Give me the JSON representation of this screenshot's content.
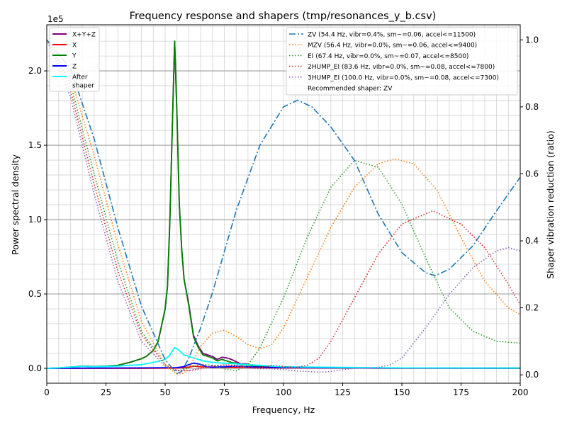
{
  "chart_data": {
    "type": "line",
    "title": "Frequency response and shapers (tmp/resonances_y_b.csv)",
    "xlabel": "Frequency, Hz",
    "ylabel": "Power spectral density",
    "y2label": "Shaper vibration reduction (ratio)",
    "y_offset_text": "1e5",
    "xlim": [
      0,
      200
    ],
    "ylim": [
      -10000,
      231000
    ],
    "y2lim": [
      -0.025,
      1.045
    ],
    "x_ticks": [
      0,
      25,
      50,
      75,
      100,
      125,
      150,
      175,
      200
    ],
    "y_ticks": [
      0,
      50000,
      100000,
      150000,
      200000
    ],
    "y_tick_labels": [
      "0.0",
      "0.5",
      "1.0",
      "1.5",
      "2.0"
    ],
    "y2_ticks": [
      0,
      0.2,
      0.4,
      0.6,
      0.8,
      1.0
    ],
    "y2_tick_labels": [
      "0.0",
      "0.2",
      "0.4",
      "0.6",
      "0.8",
      "1.0"
    ],
    "grid": true,
    "psd_series": [
      {
        "name": "X+Y+Z",
        "color": "#800080",
        "style": "solid",
        "x": [
          0,
          5,
          10,
          15,
          20,
          25,
          30,
          35,
          38,
          40,
          42,
          45,
          47,
          48,
          50,
          51,
          52,
          53,
          54,
          55,
          56,
          57,
          58,
          60,
          62,
          64,
          66,
          68,
          70,
          72,
          74,
          76,
          78,
          80,
          82,
          84,
          86,
          88,
          90,
          100,
          120,
          150,
          200
        ],
        "y": [
          0,
          300,
          800,
          1500,
          1200,
          1500,
          2000,
          4000,
          5500,
          6500,
          8000,
          12000,
          18000,
          25000,
          40000,
          55000,
          100000,
          160000,
          220000,
          170000,
          110000,
          80000,
          60000,
          43000,
          22000,
          15000,
          10000,
          9000,
          8000,
          6000,
          7500,
          7000,
          6000,
          4500,
          3000,
          3000,
          2500,
          2000,
          1500,
          1000,
          500,
          300,
          200
        ]
      },
      {
        "name": "X",
        "color": "#ff0000",
        "style": "solid",
        "x": [
          0,
          20,
          40,
          55,
          60,
          62,
          65,
          70,
          75,
          80,
          90,
          100,
          150,
          200
        ],
        "y": [
          0,
          0,
          0,
          200,
          800,
          1500,
          1000,
          700,
          800,
          600,
          400,
          300,
          100,
          50
        ]
      },
      {
        "name": "Y",
        "color": "#008000",
        "style": "solid",
        "x": [
          0,
          5,
          10,
          15,
          20,
          25,
          30,
          35,
          38,
          40,
          42,
          45,
          47,
          48,
          50,
          51,
          52,
          53,
          54,
          55,
          56,
          57,
          58,
          60,
          62,
          64,
          66,
          68,
          70,
          72,
          74,
          76,
          78,
          80,
          82,
          84,
          86,
          88,
          90,
          100,
          120,
          150,
          200
        ],
        "y": [
          0,
          300,
          800,
          1500,
          1200,
          1500,
          2000,
          4000,
          5500,
          6500,
          8000,
          12000,
          18000,
          25000,
          40000,
          55000,
          100000,
          160000,
          220000,
          170000,
          110000,
          80000,
          60000,
          42000,
          21000,
          14000,
          9000,
          8000,
          7000,
          5000,
          6000,
          5000,
          4000,
          3500,
          2500,
          2500,
          2000,
          1500,
          1200,
          800,
          400,
          200,
          150
        ]
      },
      {
        "name": "Z",
        "color": "#0000ff",
        "style": "solid",
        "x": [
          0,
          20,
          40,
          55,
          58,
          60,
          62,
          64,
          66,
          68,
          70,
          75,
          80,
          85,
          90,
          100,
          150,
          200
        ],
        "y": [
          0,
          200,
          300,
          500,
          1200,
          2500,
          3500,
          3000,
          2000,
          1000,
          800,
          1000,
          1500,
          1000,
          800,
          500,
          200,
          100
        ]
      },
      {
        "name": "After\nshaper",
        "color": "#00ffff",
        "style": "solid",
        "x": [
          0,
          5,
          10,
          15,
          20,
          25,
          30,
          35,
          40,
          45,
          48,
          50,
          52,
          54,
          56,
          58,
          60,
          62,
          64,
          66,
          70,
          75,
          80,
          85,
          90,
          100,
          150,
          200
        ],
        "y": [
          0,
          300,
          800,
          1400,
          1000,
          1300,
          1500,
          2000,
          2500,
          4000,
          5000,
          6000,
          9000,
          14000,
          12000,
          9000,
          8000,
          7000,
          6000,
          5000,
          4000,
          3500,
          3000,
          2500,
          2000,
          1000,
          300,
          200
        ]
      }
    ],
    "shaper_series": [
      {
        "name": "ZV (54.4 Hz, vibr=0.4%, sm~=0.06, accel<=11500)",
        "color": "#1f77b4",
        "style": "dashdot",
        "x": [
          0,
          10,
          20,
          30,
          40,
          50,
          55,
          57,
          60,
          65,
          70,
          80,
          90,
          100,
          106,
          112,
          120,
          130,
          140,
          150,
          160,
          164,
          170,
          180,
          190,
          200
        ],
        "y": [
          1.0,
          0.915,
          0.705,
          0.44,
          0.205,
          0.045,
          0.004,
          0.01,
          0.05,
          0.14,
          0.245,
          0.49,
          0.685,
          0.8,
          0.82,
          0.8,
          0.74,
          0.64,
          0.48,
          0.365,
          0.305,
          0.296,
          0.315,
          0.385,
          0.49,
          0.59
        ]
      },
      {
        "name": "MZV (56.4 Hz, vibr=0.0%, sm~=0.06, accel<=9400)",
        "color": "#ff7f0e",
        "style": "dotted",
        "x": [
          0,
          10,
          20,
          30,
          40,
          50,
          55,
          58,
          60,
          65,
          70,
          75,
          80,
          85,
          90,
          95,
          100,
          110,
          120,
          130,
          140,
          147,
          155,
          165,
          175,
          185,
          195,
          200
        ],
        "y": [
          1.0,
          0.89,
          0.655,
          0.39,
          0.16,
          0.03,
          0.002,
          0.005,
          0.02,
          0.085,
          0.125,
          0.133,
          0.115,
          0.09,
          0.078,
          0.09,
          0.14,
          0.29,
          0.44,
          0.56,
          0.63,
          0.645,
          0.63,
          0.55,
          0.41,
          0.28,
          0.2,
          0.18
        ]
      },
      {
        "name": "EI (67.4 Hz, vibr=0.0%, sm~=0.07, accel<=8500)",
        "color": "#2ca02c",
        "style": "dotted",
        "x": [
          0,
          10,
          20,
          30,
          40,
          50,
          55,
          58,
          62,
          66,
          70,
          75,
          80,
          85,
          90,
          100,
          110,
          120,
          130,
          140,
          150,
          160,
          170,
          180,
          190,
          200
        ],
        "y": [
          1.0,
          0.87,
          0.6,
          0.34,
          0.13,
          0.03,
          0.012,
          0.016,
          0.026,
          0.031,
          0.028,
          0.018,
          0.012,
          0.03,
          0.08,
          0.23,
          0.41,
          0.56,
          0.64,
          0.62,
          0.51,
          0.35,
          0.2,
          0.13,
          0.1,
          0.095
        ]
      },
      {
        "name": "2HUMP_EI (83.6 Hz, vibr=0.0%, sm~=0.08, accel<=7800)",
        "color": "#d62728",
        "style": "dotted",
        "x": [
          0,
          10,
          20,
          30,
          40,
          50,
          55,
          60,
          65,
          70,
          75,
          80,
          85,
          90,
          95,
          100,
          105,
          110,
          115,
          120,
          130,
          140,
          150,
          163,
          175,
          185,
          195,
          200
        ],
        "y": [
          1.0,
          0.85,
          0.57,
          0.31,
          0.12,
          0.03,
          0.013,
          0.012,
          0.018,
          0.026,
          0.03,
          0.028,
          0.022,
          0.022,
          0.028,
          0.025,
          0.022,
          0.028,
          0.05,
          0.1,
          0.23,
          0.36,
          0.45,
          0.49,
          0.45,
          0.38,
          0.27,
          0.21
        ]
      },
      {
        "name": "3HUMP_EI (100.0 Hz, vibr=0.0%, sm~=0.08, accel<=7300)",
        "color": "#9467bd",
        "style": "dotted",
        "x": [
          0,
          10,
          20,
          30,
          40,
          50,
          55,
          60,
          65,
          70,
          75,
          80,
          85,
          90,
          95,
          100,
          105,
          110,
          115,
          120,
          125,
          130,
          135,
          140,
          145,
          150,
          160,
          170,
          180,
          190,
          195,
          200
        ],
        "y": [
          1.0,
          0.83,
          0.54,
          0.28,
          0.1,
          0.025,
          0.012,
          0.013,
          0.02,
          0.028,
          0.029,
          0.025,
          0.02,
          0.018,
          0.018,
          0.016,
          0.012,
          0.01,
          0.008,
          0.01,
          0.015,
          0.02,
          0.02,
          0.022,
          0.03,
          0.05,
          0.14,
          0.24,
          0.32,
          0.37,
          0.38,
          0.37
        ]
      }
    ],
    "recommended_text": "Recommended shaper: ZV",
    "legend_left_placement": "upper-left",
    "legend_right_placement": "upper-right"
  }
}
